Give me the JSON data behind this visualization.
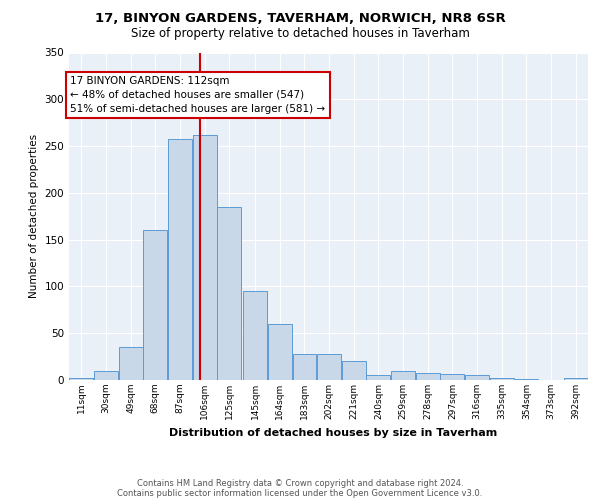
{
  "title1": "17, BINYON GARDENS, TAVERHAM, NORWICH, NR8 6SR",
  "title2": "Size of property relative to detached houses in Taverham",
  "xlabel": "Distribution of detached houses by size in Taverham",
  "ylabel": "Number of detached properties",
  "property_size": 112,
  "annotation_line1": "17 BINYON GARDENS: 112sqm",
  "annotation_line2": "← 48% of detached houses are smaller (547)",
  "annotation_line3": "51% of semi-detached houses are larger (581) →",
  "footer1": "Contains HM Land Registry data © Crown copyright and database right 2024.",
  "footer2": "Contains public sector information licensed under the Open Government Licence v3.0.",
  "bin_labels": [
    "11sqm",
    "30sqm",
    "49sqm",
    "68sqm",
    "87sqm",
    "106sqm",
    "125sqm",
    "145sqm",
    "164sqm",
    "183sqm",
    "202sqm",
    "221sqm",
    "240sqm",
    "259sqm",
    "278sqm",
    "297sqm",
    "316sqm",
    "335sqm",
    "354sqm",
    "373sqm",
    "392sqm"
  ],
  "bin_edges": [
    11,
    30,
    49,
    68,
    87,
    106,
    125,
    145,
    164,
    183,
    202,
    221,
    240,
    259,
    278,
    297,
    316,
    335,
    354,
    373,
    392
  ],
  "bar_heights": [
    2,
    10,
    35,
    160,
    258,
    262,
    185,
    95,
    60,
    28,
    28,
    20,
    5,
    10,
    8,
    6,
    5,
    2,
    1,
    0,
    2
  ],
  "bar_color": "#c8d8e8",
  "bar_edge_color": "#5b9bd5",
  "vline_x": 112,
  "vline_color": "#cc0000",
  "plot_bg_color": "#eaf0f8",
  "annotation_box_color": "#cc0000",
  "ylim": [
    0,
    350
  ],
  "yticks": [
    0,
    50,
    100,
    150,
    200,
    250,
    300,
    350
  ]
}
